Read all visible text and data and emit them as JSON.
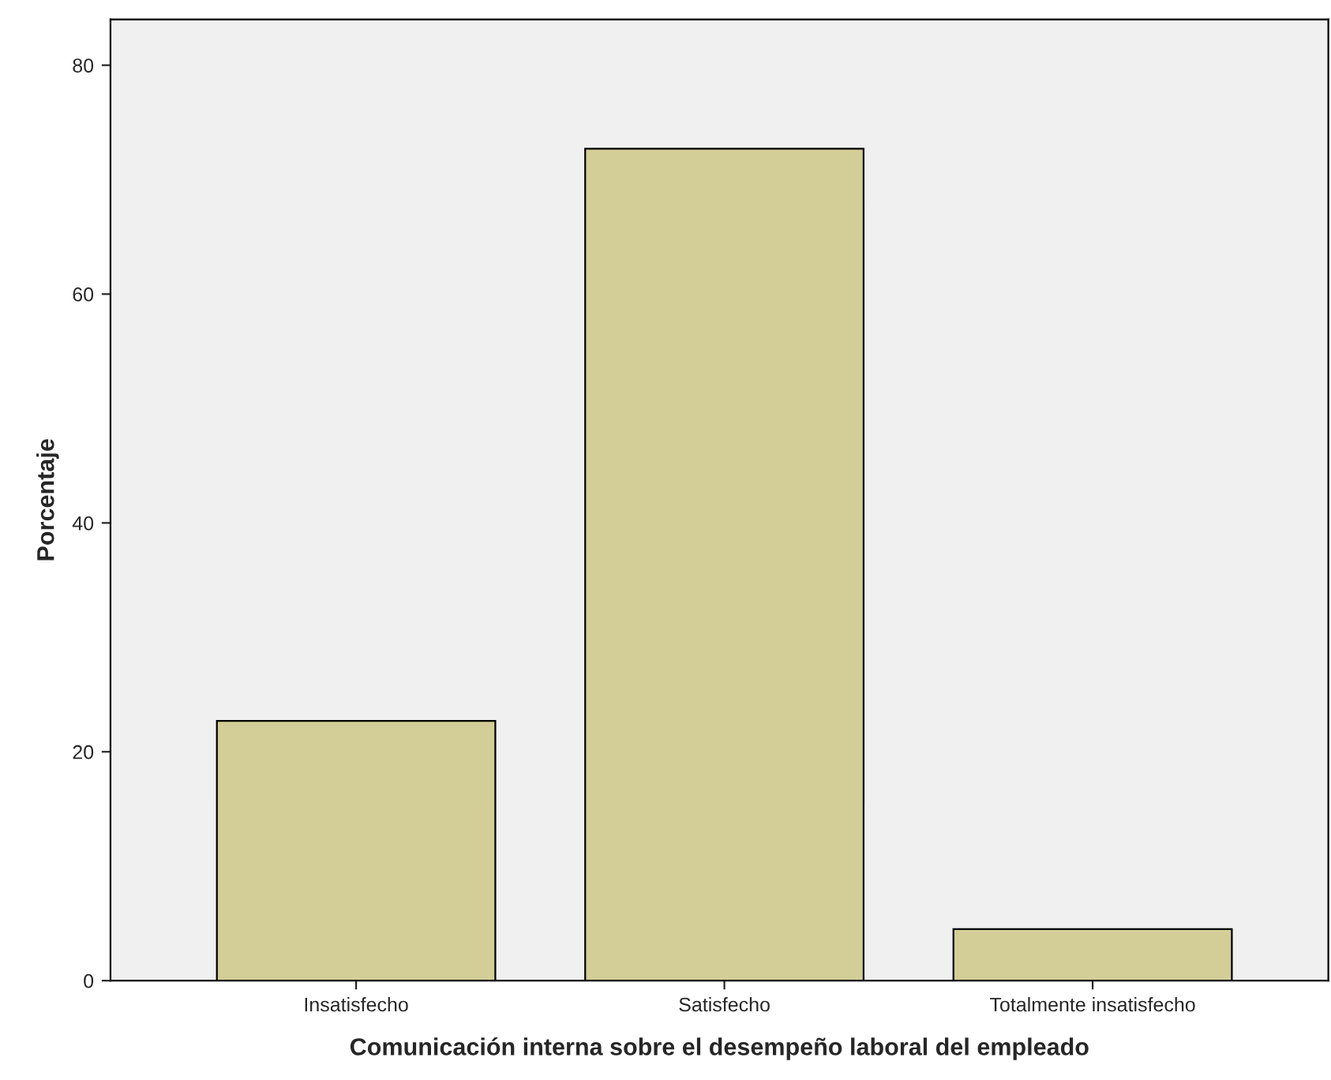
{
  "chart_data": {
    "type": "bar",
    "xlabel": "Comunicación interna sobre el desempeño laboral del empleado",
    "ylabel": "Porcentaje",
    "categories": [
      "Insatisfecho",
      "Satisfecho",
      "Totalmente insatisfecho"
    ],
    "values": [
      22.7,
      72.7,
      4.5
    ],
    "color": "#d3ce97",
    "ylim": [
      0,
      84
    ],
    "yticks": [
      0,
      20,
      40,
      60,
      80
    ],
    "grid": false
  }
}
